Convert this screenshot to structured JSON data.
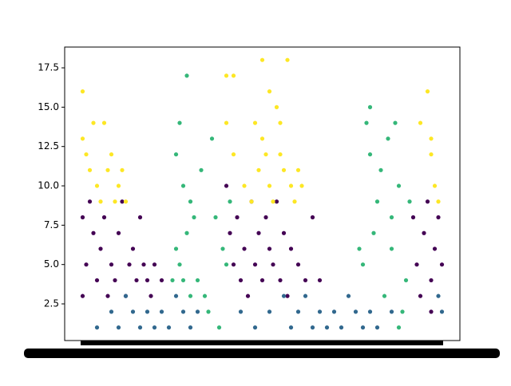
{
  "chart_data": {
    "type": "scatter",
    "xlim": [
      -5,
      105
    ],
    "ylim": [
      0.17,
      18.82
    ],
    "yticks": [
      {
        "value": 2.5,
        "label": "2.5"
      },
      {
        "value": 5,
        "label": "5.0"
      },
      {
        "value": 7.5,
        "label": "7.5"
      },
      {
        "value": 10,
        "label": "10.0"
      },
      {
        "value": 12.5,
        "label": "12.5"
      },
      {
        "value": 15,
        "label": "15.0"
      },
      {
        "value": 17.5,
        "label": "17.5"
      }
    ],
    "series": [
      {
        "color": "#440154",
        "x": [
          0,
          0,
          1,
          2,
          3,
          4,
          5,
          6,
          7,
          8,
          9,
          10,
          11,
          12,
          13,
          14,
          15,
          16,
          17,
          18,
          19,
          20,
          22,
          40,
          41,
          42,
          43,
          44,
          45,
          46,
          47,
          48,
          49,
          50,
          51,
          52,
          53,
          54,
          55,
          56,
          57,
          58,
          60,
          62,
          64,
          66,
          92,
          93,
          94,
          95,
          96,
          97,
          98,
          99,
          100,
          97
        ],
        "values": [
          8,
          3,
          5,
          9,
          7,
          4,
          6,
          8,
          3,
          5,
          4,
          7,
          9,
          3,
          5,
          6,
          4,
          8,
          5,
          4,
          3,
          5,
          4,
          10,
          7,
          5,
          8,
          4,
          6,
          3,
          9,
          5,
          7,
          4,
          8,
          6,
          5,
          9,
          4,
          7,
          3,
          6,
          5,
          4,
          8,
          4,
          8,
          5,
          3,
          7,
          9,
          4,
          6,
          8,
          5,
          2
        ]
      },
      {
        "color": "#31688e",
        "x": [
          4,
          8,
          10,
          12,
          14,
          16,
          18,
          20,
          22,
          24,
          26,
          28,
          30,
          32,
          44,
          48,
          52,
          56,
          58,
          60,
          62,
          64,
          66,
          68,
          70,
          72,
          74,
          76,
          78,
          80,
          82,
          86,
          100,
          99
        ],
        "values": [
          1,
          2,
          1,
          3,
          2,
          1,
          2,
          1,
          2,
          1,
          3,
          2,
          1,
          2,
          2,
          1,
          2,
          3,
          1,
          2,
          3,
          1,
          2,
          1,
          2,
          1,
          3,
          2,
          1,
          2,
          1,
          2,
          2,
          3
        ]
      },
      {
        "color": "#35b779",
        "x": [
          26,
          27,
          29,
          28,
          30,
          31,
          26,
          27,
          29,
          32,
          33,
          34,
          35,
          36,
          37,
          38,
          39,
          40,
          41,
          30,
          28,
          25,
          77,
          78,
          79,
          80,
          80,
          81,
          82,
          83,
          84,
          85,
          86,
          87,
          88,
          89,
          90,
          91,
          88,
          86
        ],
        "values": [
          12,
          14,
          17,
          10,
          9,
          8,
          6,
          5,
          7,
          4,
          11,
          3,
          2,
          13,
          8,
          1,
          6,
          5,
          9,
          3,
          4,
          4,
          6,
          5,
          14,
          15,
          12,
          7,
          9,
          11,
          3,
          13,
          8,
          14,
          10,
          2,
          4,
          9,
          1,
          6
        ]
      },
      {
        "color": "#fde725",
        "x": [
          0,
          0,
          1,
          2,
          3,
          4,
          5,
          6,
          7,
          8,
          9,
          10,
          11,
          12,
          40,
          42,
          40,
          42,
          45,
          47,
          48,
          49,
          50,
          50,
          51,
          52,
          52,
          53,
          54,
          55,
          55,
          56,
          57,
          58,
          59,
          60,
          61,
          96,
          94,
          97,
          98,
          99,
          97
        ],
        "values": [
          16,
          13,
          12,
          11,
          14,
          10,
          9,
          14,
          11,
          12,
          9,
          10,
          11,
          9,
          14,
          12,
          17,
          17,
          10,
          9,
          14,
          11,
          13,
          18,
          12,
          16,
          10,
          9,
          15,
          14,
          12,
          11,
          18,
          10,
          9,
          11,
          10,
          16,
          14,
          12,
          10,
          9,
          13
        ]
      }
    ]
  }
}
